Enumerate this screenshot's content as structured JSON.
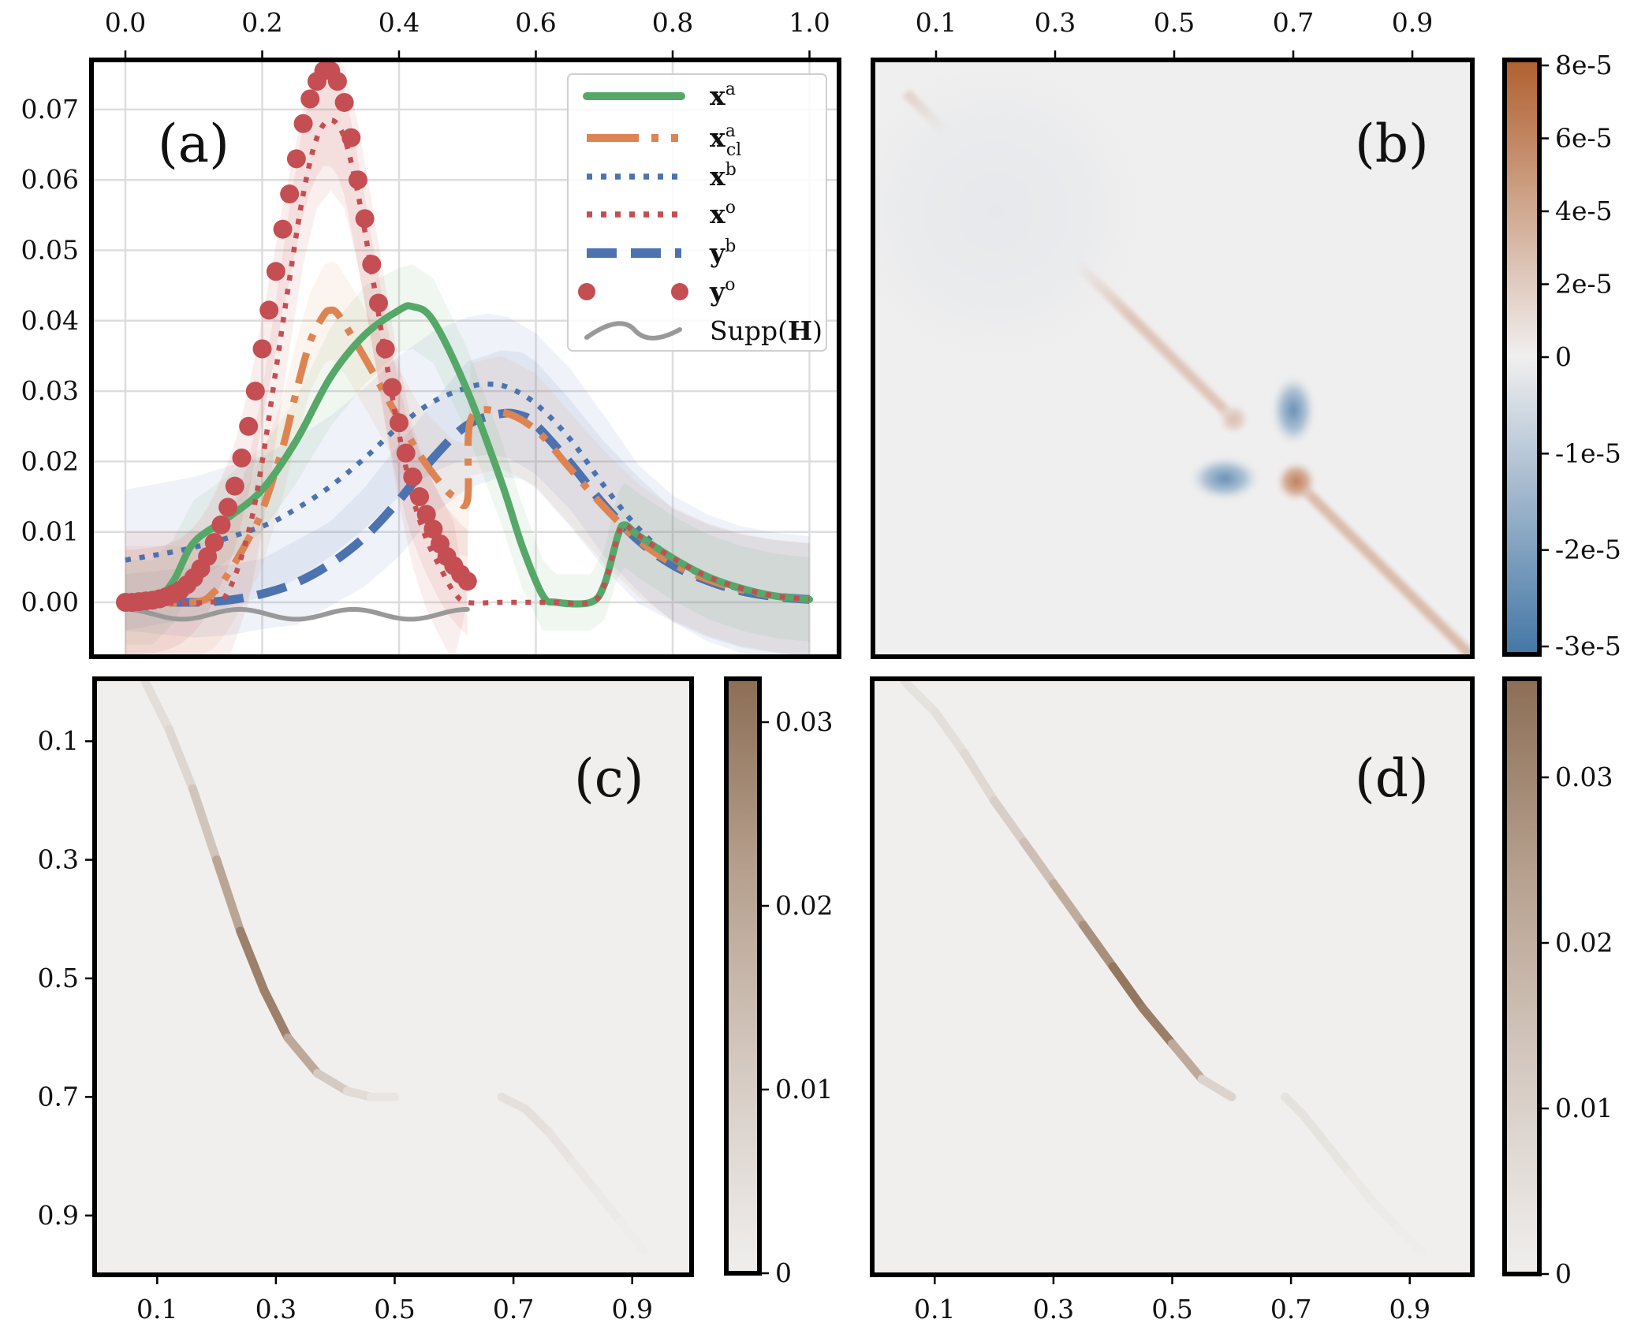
{
  "chart_data": [
    {
      "id": "a",
      "type": "line",
      "panel_label": "(a)",
      "xlim": [
        0.0,
        1.0
      ],
      "ylim": [
        -0.0077,
        0.077
      ],
      "grid": true,
      "x_tick_labels": [
        "0.0",
        "0.2",
        "0.4",
        "0.6",
        "0.8",
        "1.0"
      ],
      "x_ticks": [
        0.0,
        0.2,
        0.4,
        0.6,
        0.8,
        1.0
      ],
      "x_axis_position": "top",
      "y_tick_labels": [
        "0.00",
        "0.01",
        "0.02",
        "0.03",
        "0.04",
        "0.05",
        "0.06",
        "0.07"
      ],
      "y_ticks": [
        0.0,
        0.01,
        0.02,
        0.03,
        0.04,
        0.05,
        0.06,
        0.07
      ],
      "legend_position": "top-right",
      "series": [
        {
          "name": "x^a",
          "label_base": "x",
          "label_sup": "a",
          "label_sub": "",
          "style": "solid",
          "color": "#55a868",
          "x": [
            0.0,
            0.04,
            0.07,
            0.1,
            0.15,
            0.2,
            0.25,
            0.3,
            0.35,
            0.4,
            0.42,
            0.45,
            0.5,
            0.55,
            0.58,
            0.61,
            0.63,
            0.68,
            0.7,
            0.72,
            0.73,
            0.75,
            0.8,
            0.85,
            0.9,
            0.95,
            1.0
          ],
          "y": [
            0.0,
            0.0,
            0.003,
            0.0085,
            0.012,
            0.016,
            0.023,
            0.032,
            0.038,
            0.0415,
            0.042,
            0.04,
            0.03,
            0.017,
            0.008,
            0.001,
            0.0,
            0.0,
            0.0025,
            0.0095,
            0.011,
            0.0095,
            0.0063,
            0.0037,
            0.002,
            0.0009,
            0.0004
          ],
          "band": [
            0.006,
            0.006,
            0.006,
            0.006,
            0.006,
            0.006,
            0.006,
            0.007,
            0.007,
            0.006,
            0.006,
            0.006,
            0.006,
            0.006,
            0.006,
            0.005,
            0.004,
            0.004,
            0.005,
            0.006,
            0.006,
            0.006,
            0.006,
            0.006,
            0.006,
            0.006,
            0.006
          ]
        },
        {
          "name": "x^a_cl",
          "label_base": "x",
          "label_sup": "a",
          "label_sub": "cl",
          "style": "dashdot",
          "color": "#dd8452",
          "x": [
            0.0,
            0.1,
            0.13,
            0.15,
            0.18,
            0.2,
            0.23,
            0.25,
            0.27,
            0.29,
            0.3,
            0.31,
            0.33,
            0.36,
            0.4,
            0.43,
            0.46,
            0.48,
            0.5,
            0.505,
            0.55,
            0.6,
            0.65,
            0.7,
            0.75,
            0.8,
            0.85,
            0.9,
            0.95,
            1.0
          ],
          "y": [
            0.0,
            0.0,
            0.0015,
            0.004,
            0.009,
            0.013,
            0.022,
            0.03,
            0.037,
            0.0408,
            0.0415,
            0.041,
            0.038,
            0.033,
            0.026,
            0.021,
            0.017,
            0.015,
            0.0145,
            0.026,
            0.027,
            0.0245,
            0.019,
            0.0135,
            0.0088,
            0.0055,
            0.0033,
            0.0018,
            0.0009,
            0.0004
          ],
          "band": [
            0.008,
            0.008,
            0.008,
            0.008,
            0.008,
            0.008,
            0.007,
            0.007,
            0.007,
            0.007,
            0.007,
            0.007,
            0.007,
            0.007,
            0.007,
            0.007,
            0.008,
            0.008,
            0.008,
            0.008,
            0.008,
            0.008,
            0.008,
            0.008,
            0.008,
            0.008,
            0.008,
            0.008,
            0.008,
            0.008
          ]
        },
        {
          "name": "x^b",
          "label_base": "x",
          "label_sup": "b",
          "label_sub": "",
          "style": "dotted",
          "color": "#4c72b0",
          "x": [
            0.0,
            0.1,
            0.2,
            0.25,
            0.3,
            0.35,
            0.4,
            0.45,
            0.5,
            0.53,
            0.56,
            0.6,
            0.65,
            0.7,
            0.75,
            0.8,
            0.85,
            0.9,
            0.95,
            1.0
          ],
          "y": [
            0.006,
            0.0078,
            0.0108,
            0.0133,
            0.0165,
            0.0205,
            0.025,
            0.0285,
            0.0305,
            0.031,
            0.0305,
            0.0282,
            0.0232,
            0.0165,
            0.0105,
            0.0062,
            0.0035,
            0.0018,
            0.0009,
            0.0004
          ],
          "band": [
            0.01,
            0.01,
            0.01,
            0.01,
            0.01,
            0.01,
            0.01,
            0.01,
            0.01,
            0.01,
            0.01,
            0.01,
            0.01,
            0.01,
            0.009,
            0.009,
            0.009,
            0.009,
            0.009,
            0.009
          ]
        },
        {
          "name": "x^o",
          "label_base": "x",
          "label_sup": "o",
          "label_sub": "",
          "style": "dotted",
          "color": "#c44e52",
          "x": [
            0.0,
            0.12,
            0.15,
            0.18,
            0.2,
            0.22,
            0.24,
            0.26,
            0.28,
            0.3,
            0.32,
            0.34,
            0.36,
            0.38,
            0.4,
            0.42,
            0.44,
            0.46,
            0.48,
            0.5,
            0.55,
            0.6,
            0.62,
            0.63,
            0.68,
            0.7,
            0.72,
            0.73,
            0.75,
            0.8,
            0.85,
            0.9,
            0.95,
            1.0
          ],
          "y": [
            0.0,
            0.0,
            0.0015,
            0.01,
            0.02,
            0.033,
            0.046,
            0.058,
            0.066,
            0.0685,
            0.066,
            0.058,
            0.047,
            0.035,
            0.024,
            0.015,
            0.009,
            0.005,
            0.0015,
            0.0,
            0.0,
            0.0,
            0.0,
            0.0,
            0.0,
            0.0025,
            0.0095,
            0.011,
            0.0095,
            0.0063,
            0.0037,
            0.002,
            0.0009,
            0.0004
          ],
          "band": [
            0.01,
            0.01,
            0.01,
            0.01,
            0.01,
            0.01,
            0.01,
            0.01,
            0.01,
            0.01,
            0.01,
            0.01,
            0.01,
            0.01,
            0.01,
            0.01,
            0.01,
            0.01,
            0.01,
            0.0,
            0.0,
            0.0,
            0.0,
            0.0,
            0.0,
            0.0,
            0.0,
            0.0,
            0.0,
            0.0,
            0.0,
            0.0,
            0.0,
            0.0
          ]
        },
        {
          "name": "y^b",
          "label_base": "y",
          "label_sup": "b",
          "label_sub": "",
          "style": "dashed",
          "color": "#4c72b0",
          "x": [
            0.0,
            0.1,
            0.15,
            0.2,
            0.25,
            0.3,
            0.35,
            0.4,
            0.45,
            0.5,
            0.55,
            0.58,
            0.6,
            0.65,
            0.7,
            0.75,
            0.8,
            0.85,
            0.9,
            0.95,
            1.0
          ],
          "y": [
            0.0,
            0.0,
            0.0003,
            0.0012,
            0.0028,
            0.0055,
            0.0093,
            0.0145,
            0.0205,
            0.0252,
            0.0268,
            0.0265,
            0.0252,
            0.0198,
            0.0138,
            0.0088,
            0.0053,
            0.0031,
            0.0016,
            0.0008,
            0.0004
          ],
          "band": [
            0.004,
            0.005,
            0.005,
            0.005,
            0.006,
            0.006,
            0.007,
            0.008,
            0.008,
            0.009,
            0.009,
            0.009,
            0.009,
            0.009,
            0.009,
            0.009,
            0.008,
            0.008,
            0.008,
            0.008,
            0.008
          ]
        },
        {
          "name": "y^o",
          "label_base": "y",
          "label_sup": "o",
          "label_sub": "",
          "style": "markers",
          "color": "#c44e52",
          "x": [
            0.0,
            0.01,
            0.02,
            0.03,
            0.04,
            0.05,
            0.06,
            0.07,
            0.08,
            0.09,
            0.1,
            0.11,
            0.12,
            0.13,
            0.14,
            0.15,
            0.16,
            0.17,
            0.18,
            0.19,
            0.2,
            0.21,
            0.22,
            0.23,
            0.24,
            0.25,
            0.26,
            0.27,
            0.28,
            0.29,
            0.3,
            0.31,
            0.32,
            0.33,
            0.34,
            0.35,
            0.36,
            0.37,
            0.38,
            0.39,
            0.4,
            0.41,
            0.42,
            0.43,
            0.44,
            0.45,
            0.46,
            0.47,
            0.48,
            0.49,
            0.5
          ],
          "y": [
            0.0,
            0.0,
            0.0001,
            0.0002,
            0.0003,
            0.0005,
            0.0008,
            0.0012,
            0.0017,
            0.0025,
            0.0035,
            0.0048,
            0.0065,
            0.0085,
            0.011,
            0.0135,
            0.0165,
            0.0205,
            0.025,
            0.03,
            0.036,
            0.0415,
            0.047,
            0.053,
            0.058,
            0.063,
            0.068,
            0.0715,
            0.074,
            0.0755,
            0.0755,
            0.074,
            0.071,
            0.066,
            0.06,
            0.0545,
            0.048,
            0.0425,
            0.036,
            0.0305,
            0.0255,
            0.0212,
            0.0178,
            0.015,
            0.0125,
            0.0104,
            0.0083,
            0.0065,
            0.0052,
            0.004,
            0.003
          ],
          "band": [
            0.0,
            0.0,
            0.0,
            0.0,
            0.0,
            0.0,
            0.0,
            0.0,
            0.0,
            0.0,
            0.0,
            0.0,
            0.0,
            0.0,
            0.0,
            0.0,
            0.0,
            0.0,
            0.0,
            0.0,
            0.0,
            0.0,
            0.0,
            0.0,
            0.0,
            0.0,
            0.0,
            0.0,
            0.0,
            0.0,
            0.0,
            0.0,
            0.0,
            0.0,
            0.0,
            0.0,
            0.0,
            0.0,
            0.0,
            0.0,
            0.0,
            0.0,
            0.0,
            0.0,
            0.0,
            0.0,
            0.0,
            0.0,
            0.0,
            0.0,
            0.0
          ]
        },
        {
          "name": "Supp(H)",
          "label_base": "Supp(",
          "label_bold": "H",
          "label_tail": ")",
          "label_sup": "",
          "label_sub": "",
          "style": "wavy",
          "color": "#999999",
          "x_range": [
            0.0,
            0.5
          ],
          "y_level": -0.0017,
          "amplitude": 0.0007,
          "waves": 3
        }
      ]
    },
    {
      "id": "b",
      "type": "heatmap",
      "panel_label": "(b)",
      "xlim": [
        0.0,
        1.0
      ],
      "ylim": [
        0.0,
        1.0
      ],
      "x_tick_labels": [
        "0.1",
        "0.3",
        "0.5",
        "0.7",
        "0.9"
      ],
      "x_ticks": [
        0.1,
        0.3,
        0.5,
        0.7,
        0.9
      ],
      "x_axis_position": "top",
      "colorbar": {
        "tick_labels": [
          "8e-5",
          "6e-5",
          "4e-5",
          "2e-5",
          "0",
          "-1e-5",
          "-2e-5",
          "-3e-5"
        ],
        "ticks": [
          8e-05,
          6e-05,
          4e-05,
          2e-05,
          0,
          -1e-05,
          -2e-05,
          -3e-05
        ],
        "vmax": 8.2e-05,
        "vmin": -3.1e-05,
        "colors_pos": [
          "#f0efef",
          "#dcc1b3",
          "#c98d6d",
          "#b0602f"
        ],
        "colors_neg": [
          "#f0efef",
          "#c6d4e0",
          "#8aa8c4",
          "#4477a6"
        ]
      },
      "features": [
        {
          "kind": "diagonal",
          "from": 0.05,
          "to": 0.6,
          "value": 2.5e-05
        },
        {
          "kind": "diagonal",
          "from": 0.7,
          "to": 1.0,
          "value": 3e-05
        },
        {
          "kind": "blob",
          "x": 0.7,
          "y": 0.585,
          "sx": 0.022,
          "sy": 0.035,
          "value": -2.6e-05
        },
        {
          "kind": "blob",
          "x": 0.585,
          "y": 0.7,
          "sx": 0.035,
          "sy": 0.022,
          "value": -2.6e-05
        },
        {
          "kind": "blob",
          "x": 0.705,
          "y": 0.705,
          "sx": 0.02,
          "sy": 0.02,
          "value": 6.5e-05
        },
        {
          "kind": "blob",
          "x": 0.6,
          "y": 0.6,
          "sx": 0.015,
          "sy": 0.015,
          "value": 3e-05
        },
        {
          "kind": "blob",
          "x": 0.2,
          "y": 0.25,
          "sx": 0.16,
          "sy": 0.16,
          "value": -2.5e-06
        }
      ]
    },
    {
      "id": "c",
      "type": "heatmap",
      "panel_label": "(c)",
      "xlim": [
        0.0,
        1.0
      ],
      "ylim": [
        0.0,
        1.0
      ],
      "x_tick_labels": [
        "0.1",
        "0.3",
        "0.5",
        "0.7",
        "0.9"
      ],
      "x_ticks": [
        0.1,
        0.3,
        0.5,
        0.7,
        0.9
      ],
      "y_tick_labels": [
        "0.1",
        "0.3",
        "0.5",
        "0.7",
        "0.9"
      ],
      "y_ticks": [
        0.1,
        0.3,
        0.5,
        0.7,
        0.9
      ],
      "colorbar": {
        "tick_labels": [
          "0.03",
          "0.02",
          "0.01",
          "0"
        ],
        "ticks": [
          0.03,
          0.02,
          0.01,
          0
        ],
        "vmin": 0,
        "vmax": 0.0324,
        "colors": [
          "#f0efee",
          "#d6cbc3",
          "#b7a18f",
          "#8c6e55"
        ]
      },
      "curves": [
        {
          "x": [
            0.08,
            0.12,
            0.16,
            0.2,
            0.24,
            0.28,
            0.32,
            0.37,
            0.42,
            0.46,
            0.5
          ],
          "y": [
            0.0,
            0.08,
            0.18,
            0.3,
            0.42,
            0.52,
            0.6,
            0.66,
            0.69,
            0.7,
            0.7
          ],
          "value": [
            0.004,
            0.006,
            0.009,
            0.016,
            0.025,
            0.032,
            0.025,
            0.014,
            0.008,
            0.004,
            0.002
          ]
        },
        {
          "x": [
            0.68,
            0.72,
            0.76,
            0.8,
            0.84,
            0.88,
            0.92
          ],
          "y": [
            0.7,
            0.72,
            0.76,
            0.81,
            0.86,
            0.91,
            0.96
          ],
          "value": [
            0.004,
            0.005,
            0.004,
            0.003,
            0.002,
            0.001,
            0.0005
          ]
        }
      ]
    },
    {
      "id": "d",
      "type": "heatmap",
      "panel_label": "(d)",
      "xlim": [
        0.0,
        1.0
      ],
      "ylim": [
        0.0,
        1.0
      ],
      "x_tick_labels": [
        "0.1",
        "0.3",
        "0.5",
        "0.7",
        "0.9"
      ],
      "x_ticks": [
        0.1,
        0.3,
        0.5,
        0.7,
        0.9
      ],
      "colorbar": {
        "tick_labels": [
          "0.03",
          "0.02",
          "0.01",
          "0"
        ],
        "ticks": [
          0.03,
          0.02,
          0.01,
          0
        ],
        "vmin": 0,
        "vmax": 0.036,
        "colors": [
          "#f0efee",
          "#d6cbc3",
          "#b7a18f",
          "#8c6e55"
        ]
      },
      "curves": [
        {
          "x": [
            0.05,
            0.1,
            0.15,
            0.2,
            0.25,
            0.3,
            0.35,
            0.4,
            0.45,
            0.5,
            0.55,
            0.6
          ],
          "y": [
            0.0,
            0.05,
            0.12,
            0.2,
            0.27,
            0.34,
            0.41,
            0.48,
            0.55,
            0.61,
            0.67,
            0.7
          ],
          "value": [
            0.004,
            0.005,
            0.006,
            0.009,
            0.013,
            0.018,
            0.024,
            0.032,
            0.036,
            0.028,
            0.015,
            0.004
          ]
        },
        {
          "x": [
            0.69,
            0.72,
            0.76,
            0.8,
            0.84,
            0.88,
            0.92
          ],
          "y": [
            0.7,
            0.73,
            0.78,
            0.83,
            0.88,
            0.92,
            0.96
          ],
          "value": [
            0.004,
            0.005,
            0.004,
            0.003,
            0.002,
            0.001,
            0.0005
          ]
        }
      ]
    }
  ]
}
